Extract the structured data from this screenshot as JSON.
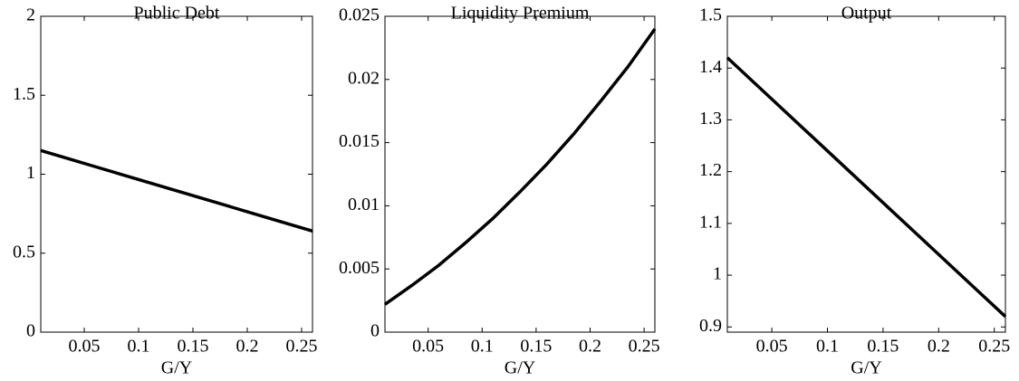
{
  "chart_data": [
    {
      "type": "line",
      "title": "Public Debt",
      "xlabel": "G/Y",
      "x": [
        0.01,
        0.035,
        0.06,
        0.085,
        0.11,
        0.135,
        0.16,
        0.185,
        0.21,
        0.235,
        0.26
      ],
      "values": [
        1.15,
        1.099,
        1.048,
        0.997,
        0.946,
        0.895,
        0.844,
        0.793,
        0.742,
        0.691,
        0.64
      ],
      "color": "#000000",
      "xlim": [
        0.01,
        0.26
      ],
      "xticks": [
        0.05,
        0.1,
        0.15,
        0.2,
        0.25
      ],
      "ylim": [
        0,
        2
      ],
      "yticks": [
        0,
        0.5,
        1,
        1.5,
        2
      ]
    },
    {
      "type": "line",
      "title": "Liquidity Premium",
      "xlabel": "G/Y",
      "x": [
        0.01,
        0.035,
        0.06,
        0.085,
        0.11,
        0.135,
        0.16,
        0.185,
        0.21,
        0.235,
        0.26
      ],
      "values": [
        0.0022,
        0.0037,
        0.0053,
        0.0071,
        0.009,
        0.0111,
        0.0133,
        0.0157,
        0.0183,
        0.021,
        0.024
      ],
      "color": "#000000",
      "xlim": [
        0.01,
        0.26
      ],
      "xticks": [
        0.05,
        0.1,
        0.15,
        0.2,
        0.25
      ],
      "ylim": [
        0,
        0.025
      ],
      "yticks": [
        0,
        0.005,
        0.01,
        0.015,
        0.02,
        0.025
      ]
    },
    {
      "type": "line",
      "title": "Output",
      "xlabel": "G/Y",
      "x": [
        0.01,
        0.035,
        0.06,
        0.085,
        0.11,
        0.135,
        0.16,
        0.185,
        0.21,
        0.235,
        0.26
      ],
      "values": [
        1.42,
        1.37,
        1.32,
        1.27,
        1.22,
        1.17,
        1.12,
        1.07,
        1.02,
        0.97,
        0.92
      ],
      "color": "#000000",
      "xlim": [
        0.01,
        0.26
      ],
      "xticks": [
        0.05,
        0.1,
        0.15,
        0.2,
        0.25
      ],
      "ylim": [
        0.89,
        1.5
      ],
      "yticks": [
        0.9,
        1,
        1.1,
        1.2,
        1.3,
        1.4,
        1.5
      ]
    }
  ]
}
